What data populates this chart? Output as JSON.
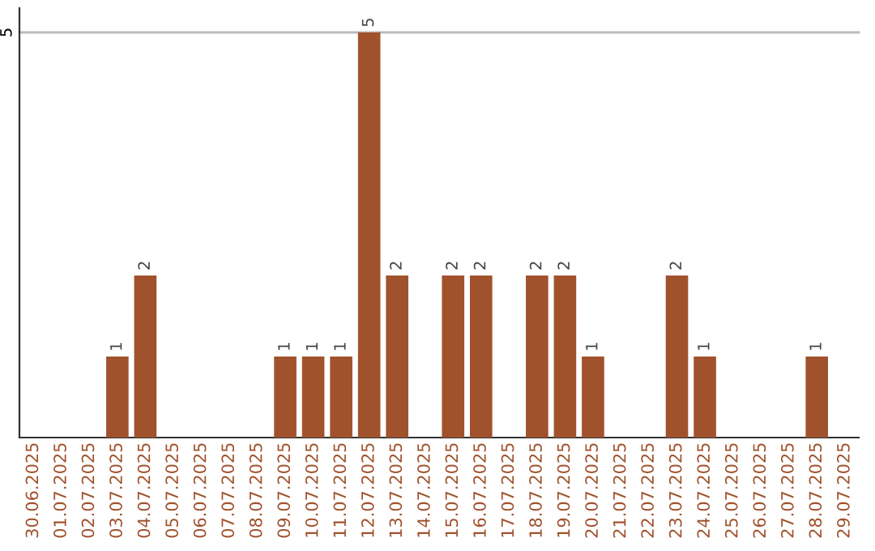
{
  "chart_data": {
    "type": "bar",
    "categories": [
      "30.06.2025",
      "01.07.2025",
      "02.07.2025",
      "03.07.2025",
      "04.07.2025",
      "05.07.2025",
      "06.07.2025",
      "07.07.2025",
      "08.07.2025",
      "09.07.2025",
      "10.07.2025",
      "11.07.2025",
      "12.07.2025",
      "13.07.2025",
      "14.07.2025",
      "15.07.2025",
      "16.07.2025",
      "17.07.2025",
      "18.07.2025",
      "19.07.2025",
      "20.07.2025",
      "21.07.2025",
      "22.07.2025",
      "23.07.2025",
      "24.07.2025",
      "25.07.2025",
      "26.07.2025",
      "27.07.2025",
      "28.07.2025",
      "29.07.2025"
    ],
    "values": [
      0,
      0,
      0,
      1,
      2,
      0,
      0,
      0,
      0,
      1,
      1,
      1,
      5,
      2,
      0,
      2,
      2,
      0,
      2,
      2,
      1,
      0,
      0,
      2,
      1,
      0,
      0,
      0,
      1,
      0
    ],
    "value_labels": [
      null,
      null,
      null,
      "1",
      "2",
      null,
      null,
      null,
      null,
      "1",
      "1",
      "1",
      "5",
      "2",
      null,
      "2",
      "2",
      null,
      "2",
      "2",
      "1",
      null,
      null,
      "2",
      "1",
      null,
      null,
      null,
      "1",
      null
    ],
    "color": "#a0522d",
    "ylim": [
      0,
      5.3
    ],
    "yticks": [
      5
    ],
    "grid": "y",
    "legend": false
  }
}
